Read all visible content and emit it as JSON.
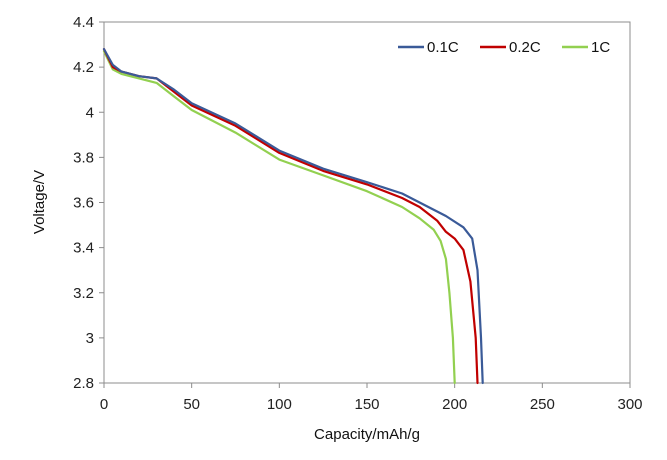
{
  "chart_data": {
    "type": "line",
    "xlabel": "Capacity/mAh/g",
    "ylabel": "Voltage/V",
    "xlim": [
      0,
      300
    ],
    "ylim": [
      2.8,
      4.4
    ],
    "x_ticks": [
      0,
      50,
      100,
      150,
      200,
      250,
      300
    ],
    "x_tick_labels": [
      "0",
      "50",
      "100",
      "150",
      "200",
      "250",
      "300"
    ],
    "y_ticks": [
      2.8,
      3.0,
      3.2,
      3.4,
      3.6,
      3.8,
      4.0,
      4.2,
      4.4
    ],
    "y_tick_labels": [
      "2.8",
      "3",
      "3.2",
      "3.4",
      "3.6",
      "3.8",
      "4",
      "4.2",
      "4.4"
    ],
    "grid": false,
    "legend_position": "top-right",
    "series": [
      {
        "name": "0.1C",
        "color": "#3a5a98",
        "points": [
          [
            0,
            4.28
          ],
          [
            5,
            4.21
          ],
          [
            10,
            4.18
          ],
          [
            20,
            4.16
          ],
          [
            30,
            4.15
          ],
          [
            40,
            4.1
          ],
          [
            50,
            4.04
          ],
          [
            75,
            3.95
          ],
          [
            100,
            3.83
          ],
          [
            125,
            3.75
          ],
          [
            150,
            3.69
          ],
          [
            170,
            3.64
          ],
          [
            180,
            3.6
          ],
          [
            195,
            3.54
          ],
          [
            205,
            3.49
          ],
          [
            210,
            3.44
          ],
          [
            213,
            3.3
          ],
          [
            215,
            3.0
          ],
          [
            216,
            2.8
          ]
        ]
      },
      {
        "name": "0.2C",
        "color": "#c00000",
        "points": [
          [
            0,
            4.28
          ],
          [
            5,
            4.2
          ],
          [
            10,
            4.18
          ],
          [
            20,
            4.16
          ],
          [
            30,
            4.15
          ],
          [
            40,
            4.09
          ],
          [
            50,
            4.03
          ],
          [
            75,
            3.94
          ],
          [
            100,
            3.82
          ],
          [
            125,
            3.74
          ],
          [
            150,
            3.68
          ],
          [
            170,
            3.62
          ],
          [
            180,
            3.58
          ],
          [
            190,
            3.52
          ],
          [
            195,
            3.47
          ],
          [
            200,
            3.44
          ],
          [
            205,
            3.39
          ],
          [
            209,
            3.25
          ],
          [
            212,
            3.0
          ],
          [
            213,
            2.8
          ]
        ]
      },
      {
        "name": "1C",
        "color": "#92d050",
        "points": [
          [
            0,
            4.27
          ],
          [
            5,
            4.19
          ],
          [
            10,
            4.17
          ],
          [
            20,
            4.15
          ],
          [
            30,
            4.13
          ],
          [
            40,
            4.07
          ],
          [
            50,
            4.01
          ],
          [
            75,
            3.91
          ],
          [
            100,
            3.79
          ],
          [
            125,
            3.72
          ],
          [
            150,
            3.65
          ],
          [
            170,
            3.58
          ],
          [
            180,
            3.53
          ],
          [
            188,
            3.48
          ],
          [
            192,
            3.43
          ],
          [
            195,
            3.35
          ],
          [
            197,
            3.2
          ],
          [
            199,
            3.0
          ],
          [
            200,
            2.8
          ]
        ]
      }
    ]
  }
}
